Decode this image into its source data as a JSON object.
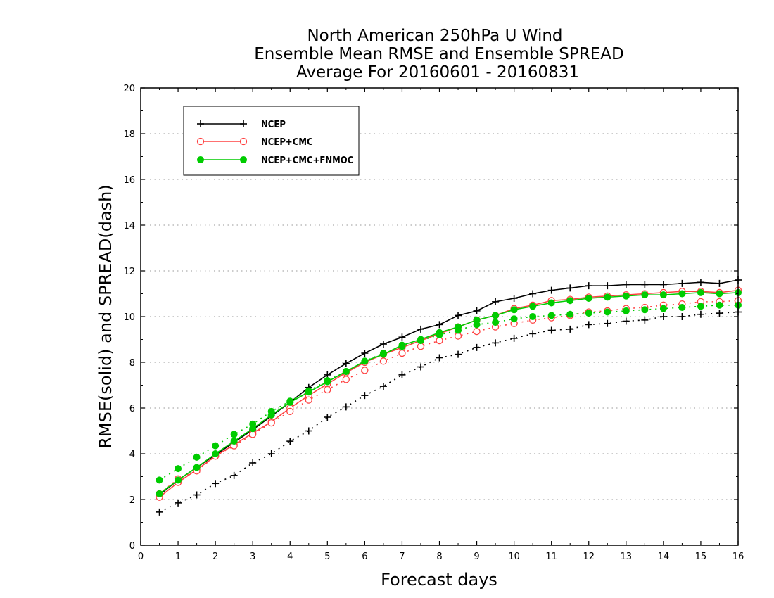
{
  "chart_data": {
    "type": "line",
    "title": [
      "North American 250hPa U Wind",
      "Ensemble Mean RMSE and Ensemble SPREAD",
      "Average For 20160601 - 20160831"
    ],
    "xlabel": "Forecast days",
    "ylabel": "RMSE(solid) and SPREAD(dash)",
    "xlim": [
      0,
      16
    ],
    "ylim": [
      0,
      20
    ],
    "xticks": [
      0,
      1,
      2,
      3,
      4,
      5,
      6,
      7,
      8,
      9,
      10,
      11,
      12,
      13,
      14,
      15,
      16
    ],
    "yticks": [
      0,
      2,
      4,
      6,
      8,
      10,
      12,
      14,
      16,
      18,
      20
    ],
    "grid": "horizontal dotted",
    "legend_position": "top-left",
    "x": [
      0.5,
      1,
      1.5,
      2,
      2.5,
      3,
      3.5,
      4,
      4.5,
      5,
      5.5,
      6,
      6.5,
      7,
      7.5,
      8,
      8.5,
      9,
      9.5,
      10,
      10.5,
      11,
      11.5,
      12,
      12.5,
      13,
      13.5,
      14,
      14.5,
      15,
      15.5,
      16
    ],
    "series": [
      {
        "name": "NCEP",
        "color": "#000000",
        "marker": "plus",
        "rmse": [
          2.2,
          2.85,
          3.4,
          3.95,
          4.5,
          5.05,
          5.65,
          6.25,
          6.9,
          7.45,
          7.95,
          8.4,
          8.8,
          9.1,
          9.45,
          9.65,
          10.05,
          10.25,
          10.65,
          10.8,
          11.0,
          11.15,
          11.25,
          11.35,
          11.35,
          11.4,
          11.4,
          11.4,
          11.45,
          11.5,
          11.45,
          11.6
        ],
        "spread": [
          1.45,
          1.85,
          2.2,
          2.7,
          3.05,
          3.6,
          4.0,
          4.55,
          5.0,
          5.6,
          6.05,
          6.55,
          6.95,
          7.45,
          7.8,
          8.2,
          8.35,
          8.65,
          8.85,
          9.05,
          9.25,
          9.4,
          9.45,
          9.65,
          9.7,
          9.8,
          9.85,
          10.0,
          10.0,
          10.1,
          10.15,
          10.2
        ]
      },
      {
        "name": "NCEP+CMC",
        "color": "#ff4040",
        "marker": "circle-open",
        "rmse": [
          2.1,
          2.75,
          3.3,
          3.9,
          4.4,
          4.9,
          5.4,
          6.0,
          6.55,
          7.05,
          7.55,
          8.0,
          8.35,
          8.65,
          8.95,
          9.25,
          9.55,
          9.85,
          10.05,
          10.35,
          10.5,
          10.7,
          10.75,
          10.85,
          10.9,
          10.95,
          11.0,
          11.05,
          11.1,
          11.1,
          11.05,
          11.15
        ],
        "spread": [
          2.25,
          2.9,
          3.25,
          3.9,
          4.35,
          4.85,
          5.35,
          5.85,
          6.35,
          6.8,
          7.25,
          7.65,
          8.05,
          8.4,
          8.7,
          8.95,
          9.15,
          9.35,
          9.55,
          9.7,
          9.85,
          9.95,
          10.05,
          10.2,
          10.25,
          10.35,
          10.4,
          10.5,
          10.55,
          10.65,
          10.65,
          10.7
        ]
      },
      {
        "name": "NCEP+CMC+FNMOC",
        "color": "#00cc00",
        "marker": "circle-filled",
        "rmse": [
          2.25,
          2.85,
          3.4,
          4.0,
          4.55,
          5.1,
          5.7,
          6.25,
          6.7,
          7.15,
          7.6,
          8.05,
          8.35,
          8.75,
          9.0,
          9.3,
          9.55,
          9.85,
          10.05,
          10.3,
          10.45,
          10.6,
          10.7,
          10.8,
          10.85,
          10.9,
          10.95,
          10.95,
          11.0,
          11.05,
          11.0,
          11.05
        ],
        "spread": [
          2.85,
          3.35,
          3.85,
          4.35,
          4.85,
          5.3,
          5.85,
          6.3,
          6.75,
          7.2,
          7.6,
          8.05,
          8.4,
          8.7,
          8.95,
          9.2,
          9.4,
          9.65,
          9.75,
          9.9,
          10.0,
          10.05,
          10.1,
          10.15,
          10.2,
          10.25,
          10.3,
          10.35,
          10.4,
          10.45,
          10.5,
          10.5
        ]
      }
    ]
  }
}
